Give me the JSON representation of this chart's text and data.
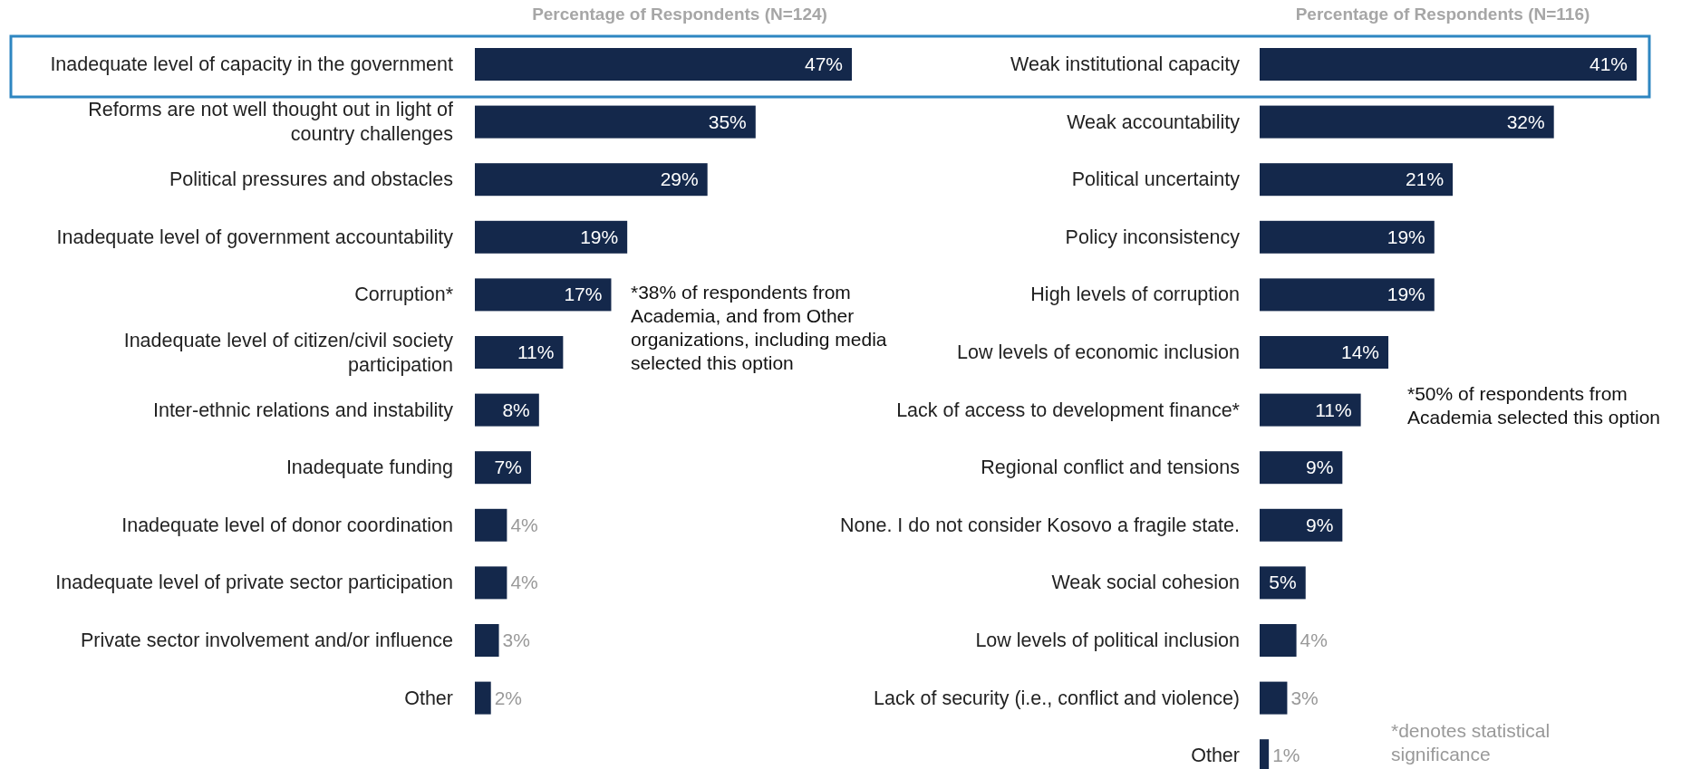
{
  "chart_data": [
    {
      "type": "bar",
      "orientation": "horizontal",
      "title": "Percentage of Respondents (N=124)",
      "categories": [
        "Inadequate level of capacity in the government",
        "Reforms are not well thought out in light of country challenges",
        "Political pressures and obstacles",
        "Inadequate level of government accountability",
        "Corruption*",
        "Inadequate level of citizen/civil society participation",
        "Inter-ethnic relations and instability",
        "Inadequate funding",
        "Inadequate level of donor coordination",
        "Inadequate level of private sector participation",
        "Private sector involvement and/or influence",
        "Other"
      ],
      "values": [
        47,
        35,
        29,
        19,
        17,
        11,
        8,
        7,
        4,
        4,
        3,
        2
      ],
      "color": "#14284b",
      "value_labels": [
        "47%",
        "35%",
        "29%",
        "19%",
        "17%",
        "11%",
        "8%",
        "7%",
        "4%",
        "4%",
        "3%",
        "2%"
      ],
      "annotations": [
        "*38% of respondents from Academia, and from Other organizations, including media selected this option"
      ]
    },
    {
      "type": "bar",
      "orientation": "horizontal",
      "title": "Percentage of Respondents (N=116)",
      "categories": [
        "Weak institutional capacity",
        "Weak accountability",
        "Political uncertainty",
        "Policy inconsistency",
        "High levels of corruption",
        "Low levels of economic inclusion",
        "Lack of access to development finance*",
        "Regional conflict and tensions",
        "None. I do not consider Kosovo a fragile state.",
        "Weak social cohesion",
        "Low levels of political inclusion",
        "Lack of security (i.e., conflict and violence)",
        "Other"
      ],
      "values": [
        41,
        32,
        21,
        19,
        19,
        14,
        11,
        9,
        9,
        5,
        4,
        3,
        1
      ],
      "color": "#14284b",
      "value_labels": [
        "41%",
        "32%",
        "21%",
        "19%",
        "19%",
        "14%",
        "11%",
        "9%",
        "9%",
        "5%",
        "4%",
        "3%",
        "1%"
      ],
      "annotations": [
        "*50% of respondents from Academia selected this option",
        "*denotes statistical significance"
      ]
    }
  ]
}
